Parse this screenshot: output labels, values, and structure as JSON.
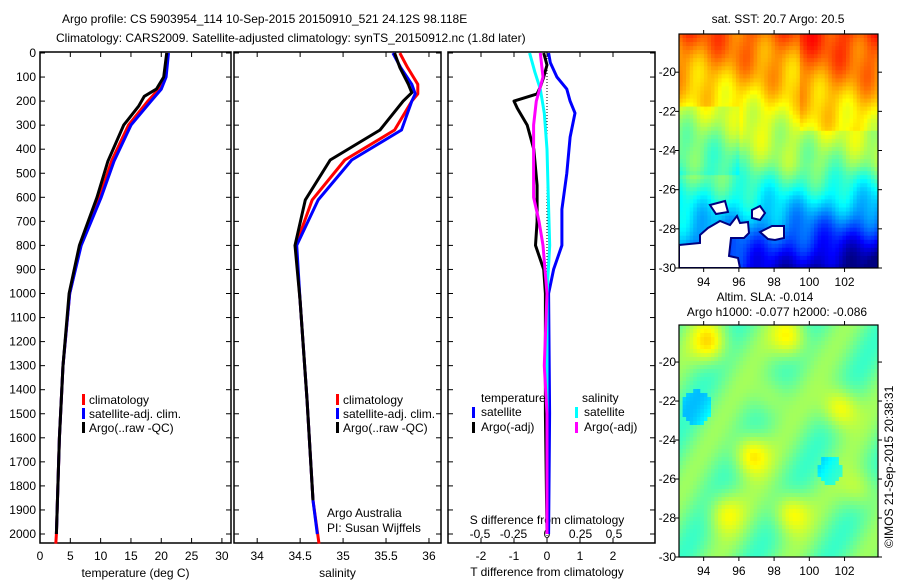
{
  "title_line1": "Argo profile: CS 5903954_114 10-Sep-2015 20150910_521 24.12S 98.118E",
  "title_line2": "Climatology: CARS2009. Satellite-adjusted climatology: synTS_20150912.nc (1.8d later)",
  "credit_line1": "Argo Australia",
  "credit_line2": "PI: Susan Wijffels",
  "timestamp": "©IMOS 21-Sep-2015 20:38:31",
  "colors": {
    "climatology": "#ff0000",
    "satellite": "#0000ff",
    "argo": "#000000",
    "sal_satellite": "#00ffff",
    "sal_argo": "#ff00ff"
  },
  "chart_data": [
    {
      "type": "line",
      "id": "temperature",
      "xlabel": "temperature (deg C)",
      "ylabel": "",
      "xlim": [
        0,
        31.5
      ],
      "ylim": [
        2040,
        0
      ],
      "xticks": [
        "0",
        "5",
        "10",
        "15",
        "20",
        "25",
        "30"
      ],
      "yticks": [
        "0",
        "100",
        "200",
        "300",
        "400",
        "500",
        "600",
        "700",
        "800",
        "900",
        "1000",
        "1100",
        "1200",
        "1300",
        "1400",
        "1500",
        "1600",
        "1700",
        "1800",
        "1900",
        "2000"
      ],
      "legend": [
        "climatology",
        "satellite-adj. clim.",
        "Argo(..raw -QC)"
      ],
      "series": [
        {
          "name": "climatology",
          "color": "#ff0000",
          "depth": [
            0,
            100,
            150,
            200,
            300,
            450,
            600,
            800,
            1000,
            1300,
            1600,
            2000,
            2040
          ],
          "values": [
            21.0,
            20.6,
            19.6,
            17.8,
            14.6,
            11.8,
            9.8,
            6.7,
            4.9,
            3.8,
            3.2,
            2.7,
            2.6
          ]
        },
        {
          "name": "satellite-adj. clim.",
          "color": "#0000ff",
          "depth": [
            0,
            100,
            150,
            200,
            300,
            450,
            600,
            800,
            1000,
            1300,
            1600,
            2000
          ],
          "values": [
            21.2,
            20.8,
            20.0,
            18.3,
            15.0,
            12.2,
            10.1,
            6.8,
            4.9,
            3.8,
            3.2,
            2.7
          ]
        },
        {
          "name": "Argo(..raw -QC)",
          "color": "#000000",
          "depth": [
            0,
            100,
            150,
            180,
            220,
            300,
            450,
            600,
            800,
            1000,
            1300,
            1600,
            2000
          ],
          "values": [
            20.9,
            20.4,
            19.2,
            17.2,
            16.3,
            13.8,
            11.2,
            9.4,
            6.5,
            4.8,
            3.8,
            3.2,
            2.7
          ]
        }
      ]
    },
    {
      "type": "line",
      "id": "salinity",
      "xlabel": "salinity",
      "xlim": [
        33.73,
        36.14
      ],
      "ylim": [
        2040,
        0
      ],
      "xticks": [
        "34",
        "34.5",
        "35",
        "35.5",
        "36"
      ],
      "legend": [
        "climatology",
        "satellite-adj. clim.",
        "Argo(..raw -QC)"
      ],
      "series": [
        {
          "name": "climatology",
          "color": "#ff0000",
          "depth": [
            0,
            60,
            130,
            170,
            200,
            320,
            445,
            611,
            800,
            1030,
            1440,
            1860,
            2040
          ],
          "values": [
            35.66,
            35.75,
            35.87,
            35.87,
            35.8,
            35.6,
            35.02,
            34.64,
            34.45,
            34.5,
            34.58,
            34.65,
            34.72
          ]
        },
        {
          "name": "satellite-adj. clim.",
          "color": "#0000ff",
          "depth": [
            0,
            60,
            130,
            170,
            200,
            320,
            445,
            611,
            800,
            1030,
            1440,
            1860,
            2000
          ],
          "values": [
            35.58,
            35.67,
            35.8,
            35.84,
            35.8,
            35.68,
            35.1,
            34.71,
            34.46,
            34.5,
            34.58,
            34.65,
            34.7
          ]
        },
        {
          "name": "Argo(..raw -QC)",
          "color": "#000000",
          "depth": [
            0,
            60,
            130,
            165,
            200,
            320,
            445,
            611,
            800,
            1030,
            1440,
            1860
          ],
          "values": [
            35.6,
            35.66,
            35.76,
            35.8,
            35.7,
            35.43,
            34.85,
            34.56,
            34.44,
            34.5,
            34.58,
            34.65
          ]
        }
      ]
    },
    {
      "type": "line",
      "id": "difference",
      "xlabel": "T difference from climatology",
      "xlabel_top": "S difference from climatology",
      "xlim": [
        -3.0,
        3.25
      ],
      "s_lim": [
        -0.75,
        0.8
      ],
      "ylim": [
        2040,
        0
      ],
      "xticks": [
        "-2",
        "-1",
        "0",
        "1",
        "2"
      ],
      "s_ticks": [
        "-0.5",
        "-0.25",
        "0",
        "0.25",
        "0.5"
      ],
      "legend_temperature_title": "temperature",
      "legend_salinity_title": "salinity",
      "legend": [
        "satellite",
        "Argo(-adj)",
        "satellite",
        "Argo(-adj)"
      ],
      "series": [
        {
          "name": "temperature satellite",
          "axis": "T",
          "color": "#0000ff",
          "depth": [
            0,
            40,
            100,
            150,
            200,
            250,
            350,
            500,
            650,
            800,
            900,
            1000,
            1500,
            2000
          ],
          "values": [
            0.05,
            0.1,
            0.3,
            0.6,
            0.7,
            0.85,
            0.7,
            0.6,
            0.45,
            0.45,
            0.2,
            0.05,
            0.08,
            0.05
          ]
        },
        {
          "name": "temperature Argo(-adj)",
          "axis": "T",
          "color": "#000000",
          "depth": [
            0,
            50,
            100,
            140,
            170,
            200,
            230,
            300,
            400,
            550,
            700,
            800,
            900,
            1000,
            1500,
            2000
          ],
          "values": [
            -0.1,
            0.0,
            -0.1,
            -0.2,
            -0.3,
            -1.0,
            -0.9,
            -0.6,
            -0.4,
            -0.3,
            -0.3,
            -0.35,
            -0.1,
            -0.05,
            -0.05,
            0.0
          ]
        },
        {
          "name": "salinity satellite",
          "axis": "S",
          "color": "#00ffff",
          "depth": [
            0,
            80,
            150,
            250,
            400,
            600,
            800,
            1000,
            1500,
            2000
          ],
          "values": [
            -0.13,
            -0.09,
            -0.05,
            -0.02,
            0.0,
            0.01,
            0.02,
            0.0,
            0.0,
            0.0
          ]
        },
        {
          "name": "salinity Argo(-adj)",
          "axis": "S",
          "color": "#ff00ff",
          "depth": [
            0,
            100,
            200,
            300,
            450,
            600,
            700,
            800,
            1000,
            1300,
            1500,
            2000
          ],
          "values": [
            -0.05,
            -0.03,
            -0.08,
            -0.1,
            -0.1,
            -0.1,
            -0.06,
            -0.03,
            0.0,
            -0.02,
            0.0,
            0.0
          ]
        }
      ]
    },
    {
      "type": "heatmap",
      "id": "sst_map",
      "title": "sat. SST: 20.7 Argo: 20.5",
      "xlim": [
        92.6,
        103.9
      ],
      "ylim": [
        -30,
        -18.05
      ],
      "xticks": [
        "94",
        "96",
        "98",
        "100",
        "102"
      ],
      "yticks": [
        "-20",
        "-22",
        "-24",
        "-26",
        "-28",
        "-30"
      ]
    },
    {
      "type": "heatmap",
      "id": "sla_map",
      "title_line1": "Altim. SLA: -0.014",
      "title_line2": "Argo h1000: -0.077 h2000: -0.086",
      "xlim": [
        92.6,
        103.9
      ],
      "ylim": [
        -30,
        -18.1
      ],
      "xticks": [
        "94",
        "96",
        "98",
        "100",
        "102"
      ],
      "yticks": [
        "-20",
        "-22",
        "-24",
        "-26",
        "-28",
        "-30"
      ]
    }
  ]
}
